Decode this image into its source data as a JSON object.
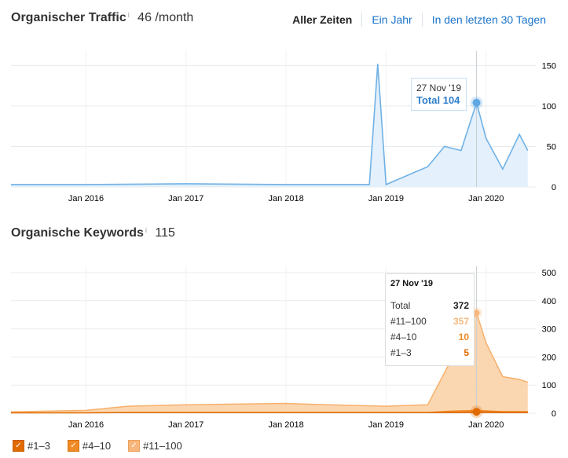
{
  "traffic": {
    "title": "Organischer Traffic",
    "info": "i",
    "value": "46 /month",
    "tabs": [
      "Aller Zeiten",
      "Ein Jahr",
      "In den letzten 30 Tagen"
    ],
    "tooltip": {
      "date": "27 Nov '19",
      "label": "Total",
      "value": "104"
    },
    "yticks": [
      "150",
      "100",
      "50",
      "0"
    ],
    "xticks": [
      "Jan 2016",
      "Jan 2017",
      "Jan 2018",
      "Jan 2019",
      "Jan 2020"
    ],
    "color": "#6fb1e6"
  },
  "keywords": {
    "title": "Organische Keywords",
    "info": "i",
    "value": "115",
    "tooltip": {
      "date": "27 Nov '19",
      "rows": [
        {
          "label": "Total",
          "value": "372",
          "color": "#222222"
        },
        {
          "label": "#11–100",
          "value": "357",
          "color": "#f7b77c"
        },
        {
          "label": "#4–10",
          "value": "10",
          "color": "#f08a24"
        },
        {
          "label": "#1–3",
          "value": "5",
          "color": "#e06a00"
        }
      ]
    },
    "yticks": [
      "500",
      "400",
      "300",
      "200",
      "100",
      "0"
    ],
    "xticks": [
      "Jan 2016",
      "Jan 2017",
      "Jan 2018",
      "Jan 2019",
      "Jan 2020"
    ],
    "legend": [
      "#1–3",
      "#4–10",
      "#11–100"
    ]
  },
  "chart_data": [
    {
      "type": "area",
      "title": "Organischer Traffic",
      "x": [
        "2015-04",
        "2016-01",
        "2017-01",
        "2018-01",
        "2018-11",
        "2018-12",
        "2019-01",
        "2019-06",
        "2019-08",
        "2019-10",
        "2019-11-27",
        "2020-01",
        "2020-03",
        "2020-05",
        "2020-06"
      ],
      "series": [
        {
          "name": "Total",
          "values": [
            3,
            3,
            4,
            3,
            3,
            152,
            3,
            25,
            50,
            45,
            104,
            60,
            22,
            65,
            45
          ]
        }
      ],
      "ylim": [
        0,
        160
      ]
    },
    {
      "type": "area",
      "title": "Organische Keywords",
      "x": [
        "2015-04",
        "2016-01",
        "2016-06",
        "2017-01",
        "2018-01",
        "2018-06",
        "2019-01",
        "2019-06",
        "2019-09",
        "2019-11-27",
        "2020-01",
        "2020-03",
        "2020-05",
        "2020-06"
      ],
      "series": [
        {
          "name": "#11–100",
          "values": [
            5,
            10,
            25,
            30,
            35,
            30,
            25,
            30,
            200,
            357,
            250,
            130,
            120,
            110
          ]
        },
        {
          "name": "#4–10",
          "values": [
            2,
            2,
            3,
            3,
            3,
            3,
            3,
            3,
            8,
            10,
            9,
            6,
            6,
            6
          ]
        },
        {
          "name": "#1–3",
          "values": [
            1,
            1,
            2,
            2,
            2,
            2,
            2,
            2,
            4,
            5,
            5,
            4,
            4,
            4
          ]
        }
      ],
      "ylim": [
        0,
        500
      ]
    }
  ]
}
